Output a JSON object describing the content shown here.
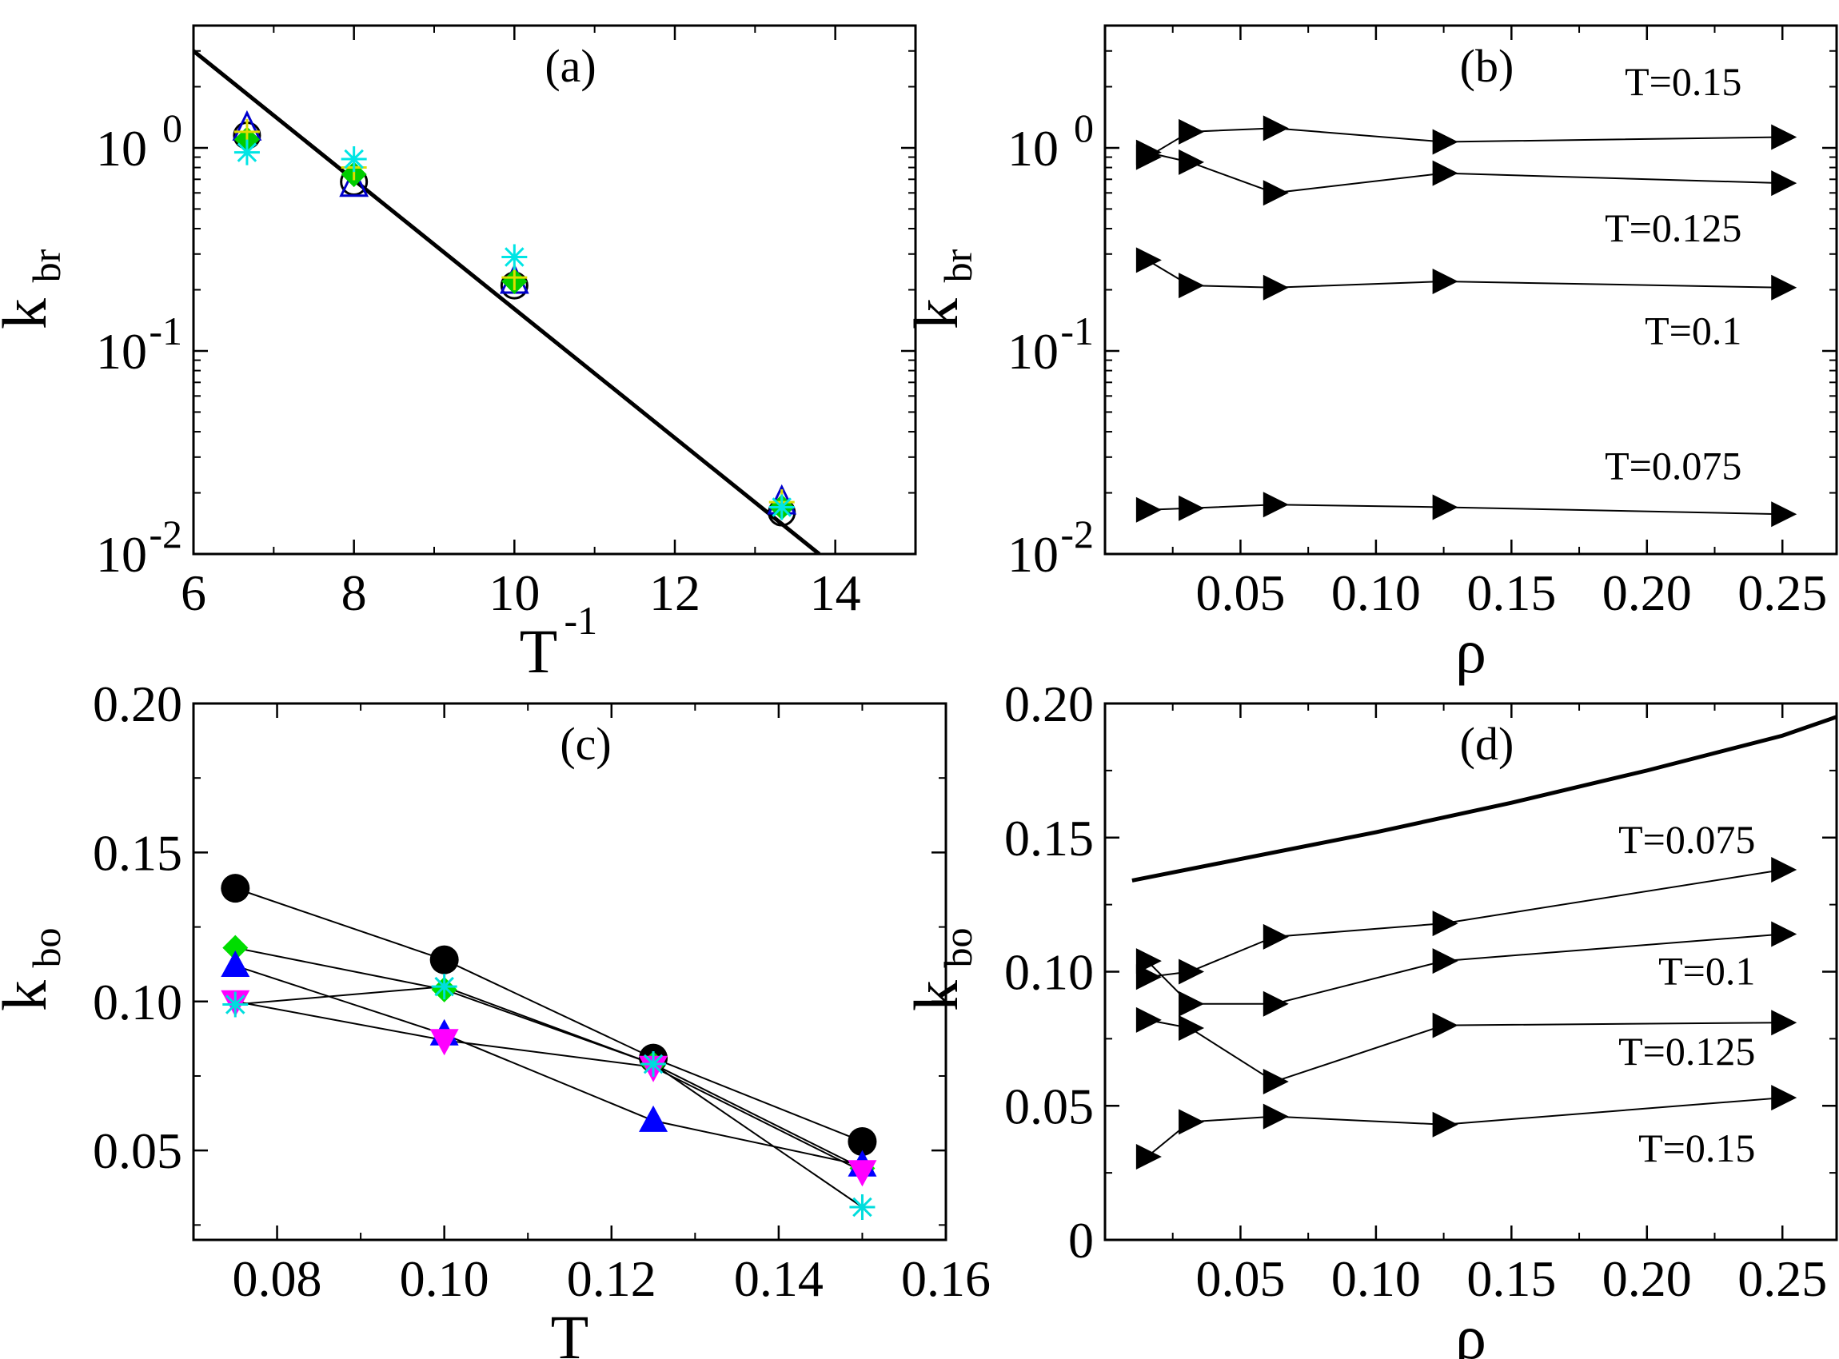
{
  "chart_data": [
    {
      "id": "a",
      "type": "scatter",
      "panel_label": "(a)",
      "xlabel": "T",
      "xlabel_sup": "-1",
      "ylabel": "k",
      "ylabel_sub": "br",
      "yscale": "log",
      "xlim": [
        6,
        15
      ],
      "ylim": [
        0.01,
        4
      ],
      "xticks": [
        6,
        8,
        10,
        12,
        14
      ],
      "xtick_labels": [
        "6",
        "8",
        "10",
        "12",
        "14"
      ],
      "yticks": [
        0.01,
        0.1,
        1
      ],
      "ytick_labels": [
        [
          "10",
          "-2"
        ],
        [
          "10",
          "-1"
        ],
        [
          "10",
          "0"
        ]
      ],
      "series": [
        {
          "name": "circle",
          "marker": "circle-open",
          "color": "#000000",
          "x": [
            6.667,
            8,
            10,
            13.333
          ],
          "y": [
            1.15,
            0.68,
            0.21,
            0.016
          ]
        },
        {
          "name": "triangle",
          "marker": "triangle-open",
          "color": "#0000cc",
          "x": [
            6.667,
            8,
            10,
            13.333
          ],
          "y": [
            1.25,
            0.66,
            0.22,
            0.018
          ]
        },
        {
          "name": "diamond",
          "marker": "diamond-filled",
          "color": "#00cc00",
          "x": [
            6.667,
            8,
            10,
            13.333
          ],
          "y": [
            1.1,
            0.74,
            0.22,
            0.017
          ]
        },
        {
          "name": "cross",
          "marker": "plus",
          "color": "#dddd00",
          "x": [
            6.667,
            8,
            10,
            13.333
          ],
          "y": [
            1.2,
            0.8,
            0.23,
            0.018
          ]
        },
        {
          "name": "star",
          "marker": "star",
          "color": "#00e5e5",
          "x": [
            6.667,
            8,
            10,
            13.333
          ],
          "y": [
            0.95,
            0.88,
            0.29,
            0.017
          ]
        }
      ],
      "fit_line": {
        "x": [
          6,
          13.8
        ],
        "y": [
          3.0,
          0.01
        ]
      }
    },
    {
      "id": "b",
      "type": "line",
      "panel_label": "(b)",
      "xlabel": "ρ",
      "ylabel": "k",
      "ylabel_sub": "br",
      "yscale": "log",
      "xlim": [
        0,
        0.27
      ],
      "ylim": [
        0.01,
        4
      ],
      "xticks": [
        0.05,
        0.1,
        0.15,
        0.2,
        0.25
      ],
      "xtick_labels": [
        "0.05",
        "0.10",
        "0.15",
        "0.20",
        "0.25"
      ],
      "yticks": [
        0.01,
        0.1,
        1
      ],
      "ytick_labels": [
        [
          "10",
          "-2"
        ],
        [
          "10",
          "-1"
        ],
        [
          "10",
          "0"
        ]
      ],
      "x": [
        0.0156,
        0.0313,
        0.0625,
        0.125,
        0.25
      ],
      "series": [
        {
          "name": "T=0.15",
          "values": [
            0.9,
            1.2,
            1.25,
            1.07,
            1.13
          ]
        },
        {
          "name": "T=0.125",
          "values": [
            0.95,
            0.85,
            0.6,
            0.75,
            0.67
          ]
        },
        {
          "name": "T=0.1",
          "values": [
            0.28,
            0.21,
            0.205,
            0.22,
            0.205
          ]
        },
        {
          "name": "T=0.075",
          "values": [
            0.0165,
            0.0168,
            0.0175,
            0.017,
            0.0157
          ]
        }
      ],
      "annotations": [
        {
          "text": "T=0.15",
          "x": 0.235,
          "y": 2.1
        },
        {
          "text": "T=0.125",
          "x": 0.235,
          "y": 0.4
        },
        {
          "text": "T=0.1",
          "x": 0.235,
          "y": 0.125
        },
        {
          "text": "T=0.075",
          "x": 0.235,
          "y": 0.027
        }
      ]
    },
    {
      "id": "c",
      "type": "line",
      "panel_label": "(c)",
      "xlabel": "T",
      "ylabel": "k",
      "ylabel_sub": "bo",
      "xlim": [
        0.07,
        0.16
      ],
      "ylim": [
        0.02,
        0.2
      ],
      "xticks": [
        0.08,
        0.1,
        0.12,
        0.14,
        0.16
      ],
      "xtick_labels": [
        "0.08",
        "0.10",
        "0.12",
        "0.14",
        "0.16"
      ],
      "yticks": [
        0.05,
        0.1,
        0.15,
        0.2
      ],
      "ytick_labels": [
        "0.05",
        "0.10",
        "0.15",
        "0.20"
      ],
      "x": [
        0.075,
        0.1,
        0.125,
        0.15
      ],
      "series": [
        {
          "name": "circle",
          "marker": "circle-filled",
          "color": "#000000",
          "values": [
            0.138,
            0.114,
            0.081,
            0.053
          ]
        },
        {
          "name": "diamond",
          "marker": "diamond-filled",
          "color": "#00dd00",
          "values": [
            0.118,
            0.104,
            0.079,
            0.044
          ]
        },
        {
          "name": "triangle-up",
          "marker": "triangle-up-filled",
          "color": "#0000ff",
          "values": [
            0.112,
            0.089,
            0.06,
            0.045
          ]
        },
        {
          "name": "triangle-down",
          "marker": "triangle-down-filled",
          "color": "#ff00ff",
          "values": [
            0.1,
            0.087,
            0.078,
            0.043
          ]
        },
        {
          "name": "star",
          "marker": "star",
          "color": "#00dddd",
          "values": [
            0.099,
            0.105,
            0.079,
            0.031
          ]
        }
      ]
    },
    {
      "id": "d",
      "type": "line",
      "panel_label": "(d)",
      "xlabel": "ρ",
      "ylabel": "k",
      "ylabel_sub": "bo",
      "xlim": [
        0,
        0.27
      ],
      "ylim": [
        0,
        0.2
      ],
      "xticks": [
        0.05,
        0.1,
        0.15,
        0.2,
        0.25
      ],
      "xtick_labels": [
        "0.05",
        "0.10",
        "0.15",
        "0.20",
        "0.25"
      ],
      "yticks": [
        0,
        0.05,
        0.1,
        0.15,
        0.2
      ],
      "ytick_labels": [
        "0",
        "0.05",
        "0.10",
        "0.15",
        "0.20"
      ],
      "x": [
        0.0156,
        0.0313,
        0.0625,
        0.125,
        0.25
      ],
      "series": [
        {
          "name": "T=0.075",
          "values": [
            0.098,
            0.1,
            0.113,
            0.118,
            0.138
          ]
        },
        {
          "name": "T=0.1",
          "values": [
            0.104,
            0.088,
            0.088,
            0.104,
            0.114
          ]
        },
        {
          "name": "T=0.125",
          "values": [
            0.082,
            0.079,
            0.059,
            0.08,
            0.081
          ]
        },
        {
          "name": "T=0.15",
          "values": [
            0.031,
            0.044,
            0.046,
            0.043,
            0.053
          ]
        }
      ],
      "curve": {
        "x": [
          0.01,
          0.05,
          0.1,
          0.15,
          0.2,
          0.25,
          0.27
        ],
        "y": [
          0.134,
          0.142,
          0.152,
          0.163,
          0.175,
          0.188,
          0.195
        ]
      },
      "annotations": [
        {
          "text": "T=0.075",
          "x": 0.24,
          "y": 0.149
        },
        {
          "text": "T=0.1",
          "x": 0.24,
          "y": 0.1
        },
        {
          "text": "T=0.125",
          "x": 0.24,
          "y": 0.07
        },
        {
          "text": "T=0.15",
          "x": 0.24,
          "y": 0.034
        }
      ]
    }
  ]
}
